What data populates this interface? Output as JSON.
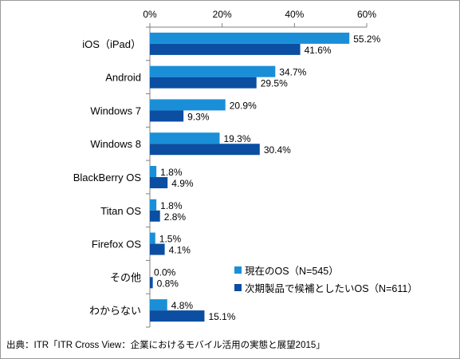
{
  "chart_data": {
    "type": "bar",
    "orientation": "horizontal",
    "categories": [
      "iOS（iPad）",
      "Android",
      "Windows 7",
      "Windows 8",
      "BlackBerry OS",
      "Titan OS",
      "Firefox OS",
      "その他",
      "わからない"
    ],
    "series": [
      {
        "name": "現在のOS（N=545）",
        "color": "#1a8fd8",
        "values": [
          55.2,
          34.7,
          20.9,
          19.3,
          1.8,
          1.8,
          1.5,
          0.0,
          4.8
        ]
      },
      {
        "name": "次期製品で候補としたいOS（N=611）",
        "color": "#0b4ea2",
        "values": [
          41.6,
          29.5,
          9.3,
          30.4,
          4.9,
          2.8,
          4.1,
          0.8,
          15.1
        ]
      }
    ],
    "xlim": [
      0,
      60
    ],
    "xticks": [
      "0%",
      "20%",
      "40%",
      "60%"
    ],
    "xtick_values": [
      0,
      20,
      40,
      60
    ],
    "value_suffix": "%",
    "legend_position": "bottom-right",
    "grid": false
  },
  "source": "出典：ITR「ITR Cross View：企業におけるモバイル活用の実態と展望2015」"
}
